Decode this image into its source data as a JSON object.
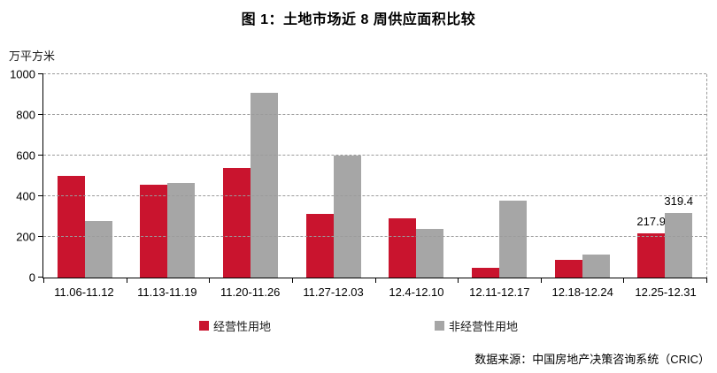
{
  "title": "图 1：土地市场近 8 周供应面积比较",
  "unit_label": "万平方米",
  "legend": [
    {
      "label": "经营性用地",
      "color": "#C9142E"
    },
    {
      "label": "非经营性用地",
      "color": "#A6A6A6"
    }
  ],
  "footer": "数据来源：中国房地产决策咨询系统（CRIC）",
  "colors": {
    "operational_red": "#C9142E",
    "non_operational_gray": "#A6A6A6",
    "gridline_gray": "#9b9b9b",
    "axis_black": "#000000"
  },
  "chart_data": {
    "type": "bar",
    "title": "图 1：土地市场近 8 周供应面积比较",
    "ylabel": "万平方米",
    "xlabel": "",
    "categories": [
      "11.06-11.12",
      "11.13-11.19",
      "11.20-11.26",
      "11.27-12.03",
      "12.4-12.10",
      "12.11-12.17",
      "12.18-12.24",
      "12.25-12.31"
    ],
    "series": [
      {
        "name": "经营性用地",
        "color": "#C9142E",
        "values": [
          500,
          455,
          540,
          315,
          290,
          50,
          85,
          217.9
        ]
      },
      {
        "name": "非经营性用地",
        "color": "#A6A6A6",
        "values": [
          280,
          465,
          910,
          600,
          240,
          380,
          115,
          319.4
        ]
      }
    ],
    "annotations": [
      {
        "series": 0,
        "category_index": 7,
        "text": "217.9"
      },
      {
        "series": 1,
        "category_index": 7,
        "text": "319.4"
      }
    ],
    "ylim": [
      0,
      1000
    ],
    "yticks": [
      0,
      200,
      400,
      600,
      800,
      1000
    ],
    "grid": "dashed-horizontal",
    "legend_position": "bottom"
  }
}
